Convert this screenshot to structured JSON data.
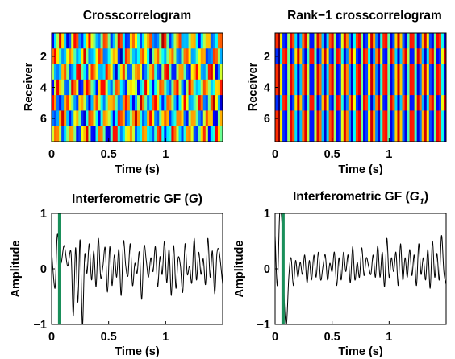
{
  "chart_data": [
    {
      "type": "heatmap",
      "title": "Crosscorrelogram",
      "xlabel": "Time (s)",
      "ylabel": "Receiver",
      "xlim": [
        0,
        1.5
      ],
      "x_ticks": [
        "0",
        "0.5",
        "1"
      ],
      "y_ticks": [
        "2",
        "4",
        "6"
      ],
      "rows": 7,
      "colormap": "jet",
      "value_range": [
        -1,
        1
      ]
    },
    {
      "type": "heatmap",
      "title": "Rank−1 crosscorrelogram",
      "xlabel": "Time (s)",
      "ylabel": "Receiver",
      "xlim": [
        0,
        1.5
      ],
      "x_ticks": [
        "0",
        "0.5",
        "1"
      ],
      "y_ticks": [
        "2",
        "4",
        "6"
      ],
      "rows": 7,
      "colormap": "jet",
      "value_range": [
        -1,
        1
      ]
    },
    {
      "type": "line",
      "title": "Interferometric GF (",
      "title_symbol": "G",
      "title_close": ")",
      "xlabel": "Time (s)",
      "ylabel": "Amplitude",
      "xlim": [
        0,
        1.5
      ],
      "ylim": [
        -1,
        1
      ],
      "x_ticks": [
        "0",
        "0.5",
        "1"
      ],
      "y_ticks": [
        "1",
        "0",
        "−1"
      ],
      "marker_x": 0.07,
      "marker_color": "#1a8f5a",
      "series": [
        {
          "x": [
            0,
            0.03,
            0.05,
            0.08,
            0.11,
            0.14,
            0.17,
            0.19,
            0.21,
            0.23,
            0.25,
            0.27,
            0.29,
            0.31,
            0.33,
            0.35,
            0.37,
            0.39,
            0.41,
            0.43,
            0.45,
            0.47,
            0.49,
            0.51,
            0.53,
            0.55,
            0.57,
            0.59,
            0.61,
            0.63,
            0.65,
            0.67,
            0.69,
            0.71,
            0.73,
            0.75,
            0.77,
            0.79,
            0.81,
            0.83,
            0.85,
            0.87,
            0.89,
            0.91,
            0.93,
            0.95,
            0.97,
            0.99,
            1.01,
            1.03,
            1.05,
            1.07,
            1.09,
            1.11,
            1.13,
            1.15,
            1.17,
            1.19,
            1.21,
            1.23,
            1.25,
            1.27,
            1.29,
            1.31,
            1.33,
            1.35,
            1.37,
            1.39,
            1.41,
            1.43,
            1.45,
            1.47,
            1.5
          ],
          "y": [
            0.32,
            -0.35,
            0.62,
            0.1,
            0.42,
            0.05,
            0.3,
            -0.85,
            0.38,
            -0.6,
            0.52,
            -1.02,
            0.25,
            -0.08,
            0.45,
            -0.2,
            0.32,
            -0.32,
            0.55,
            -0.15,
            0.05,
            0.38,
            -0.42,
            0.4,
            -0.3,
            0.25,
            -0.15,
            0.35,
            -0.48,
            0.5,
            0.05,
            -0.12,
            0.45,
            -0.3,
            0.1,
            -0.08,
            0.3,
            -0.55,
            0.4,
            0.15,
            -0.15,
            0.2,
            -0.05,
            0.4,
            -0.32,
            0.22,
            -0.1,
            0.5,
            -0.25,
            0.35,
            -0.48,
            0.42,
            -0.35,
            0.2,
            0.05,
            -0.42,
            0.45,
            -0.1,
            0.05,
            -0.25,
            0.55,
            -0.2,
            0.3,
            -0.1,
            0.18,
            -0.28,
            0.55,
            -0.15,
            0.32,
            -0.45,
            0.28,
            0.3,
            -0.28
          ]
        }
      ]
    },
    {
      "type": "line",
      "title": "Interferometric GF (",
      "title_symbol": "G",
      "title_subscript": "1",
      "title_close": ")",
      "xlabel": "Time (s)",
      "ylabel": "Amplitude",
      "xlim": [
        0,
        1.5
      ],
      "ylim": [
        -1,
        1
      ],
      "x_ticks": [
        "0",
        "0.5",
        "1"
      ],
      "y_ticks": [
        "1",
        "0",
        "−1"
      ],
      "marker_x": 0.07,
      "marker_color": "#1a8f5a",
      "series": [
        {
          "x": [
            0,
            0.02,
            0.04,
            0.06,
            0.08,
            0.1,
            0.12,
            0.14,
            0.16,
            0.18,
            0.2,
            0.22,
            0.24,
            0.26,
            0.28,
            0.3,
            0.32,
            0.34,
            0.36,
            0.38,
            0.4,
            0.42,
            0.44,
            0.46,
            0.48,
            0.5,
            0.52,
            0.54,
            0.56,
            0.58,
            0.6,
            0.62,
            0.64,
            0.66,
            0.68,
            0.7,
            0.72,
            0.74,
            0.76,
            0.78,
            0.8,
            0.82,
            0.84,
            0.86,
            0.88,
            0.9,
            0.92,
            0.94,
            0.96,
            0.98,
            1.0,
            1.02,
            1.04,
            1.06,
            1.08,
            1.1,
            1.12,
            1.14,
            1.16,
            1.18,
            1.2,
            1.22,
            1.24,
            1.26,
            1.28,
            1.3,
            1.32,
            1.34,
            1.36,
            1.38,
            1.4,
            1.42,
            1.44,
            1.46,
            1.48,
            1.5
          ],
          "y": [
            0.6,
            -0.3,
            1.0,
            0.82,
            -0.55,
            -1.0,
            -0.15,
            0.2,
            -0.3,
            0.15,
            -0.15,
            0.12,
            -0.1,
            0.25,
            -0.25,
            0.15,
            -0.2,
            0.25,
            -0.15,
            0.3,
            -0.2,
            0.05,
            0.25,
            -0.2,
            0.1,
            -0.05,
            0.3,
            -0.3,
            0.2,
            -0.2,
            0.3,
            -0.05,
            0.25,
            -0.25,
            0.4,
            -0.2,
            0.12,
            -0.15,
            0.38,
            -0.12,
            0.2,
            0.05,
            -0.1,
            0.25,
            -0.15,
            0.42,
            -0.15,
            0.3,
            -0.32,
            0.55,
            -0.15,
            0.2,
            -0.05,
            0.3,
            -0.3,
            0.45,
            -0.2,
            0.2,
            -0.15,
            0.35,
            -0.12,
            0.25,
            -0.3,
            0.45,
            -0.1,
            0.2,
            -0.2,
            0.35,
            -0.35,
            0.5,
            -0.15,
            0.28,
            -0.2,
            0.6,
            -0.05,
            -0.28
          ]
        }
      ]
    }
  ]
}
